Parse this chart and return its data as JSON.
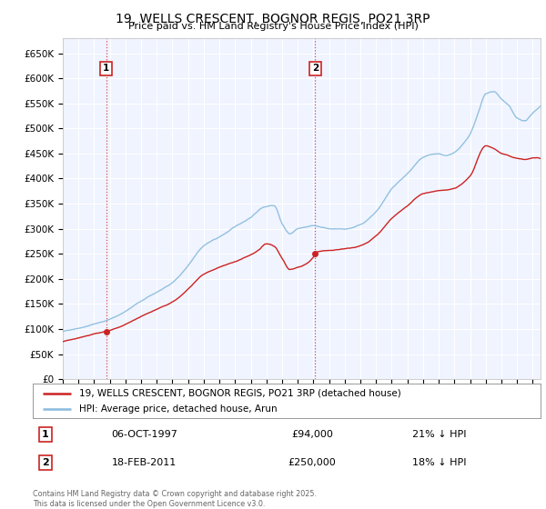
{
  "title": "19, WELLS CRESCENT, BOGNOR REGIS, PO21 3RP",
  "subtitle": "Price paid vs. HM Land Registry's House Price Index (HPI)",
  "legend_line1": "19, WELLS CRESCENT, BOGNOR REGIS, PO21 3RP (detached house)",
  "legend_line2": "HPI: Average price, detached house, Arun",
  "footer": "Contains HM Land Registry data © Crown copyright and database right 2025.\nThis data is licensed under the Open Government Licence v3.0.",
  "price_color": "#cc2222",
  "hpi_color": "#88bbdd",
  "background_color": "#f0f4ff",
  "grid_color": "#ffffff",
  "annotation_box_color": "#cc2222",
  "vline_color": "#cc2222",
  "sale1": {
    "label": "1",
    "date": "06-OCT-1997",
    "price": 94000,
    "hpi_pct": "21% ↓ HPI",
    "x": 1997.76
  },
  "sale2": {
    "label": "2",
    "date": "18-FEB-2011",
    "price": 250000,
    "hpi_pct": "18% ↓ HPI",
    "x": 2011.12
  },
  "ylim": [
    0,
    680000
  ],
  "yticks": [
    0,
    50000,
    100000,
    150000,
    200000,
    250000,
    300000,
    350000,
    400000,
    450000,
    500000,
    550000,
    600000,
    650000
  ],
  "xlim": [
    1995.0,
    2025.5
  ],
  "xticks": [
    1995,
    1996,
    1997,
    1998,
    1999,
    2000,
    2001,
    2002,
    2003,
    2004,
    2005,
    2006,
    2007,
    2008,
    2009,
    2010,
    2011,
    2012,
    2013,
    2014,
    2015,
    2016,
    2017,
    2018,
    2019,
    2020,
    2021,
    2022,
    2023,
    2024,
    2025
  ]
}
